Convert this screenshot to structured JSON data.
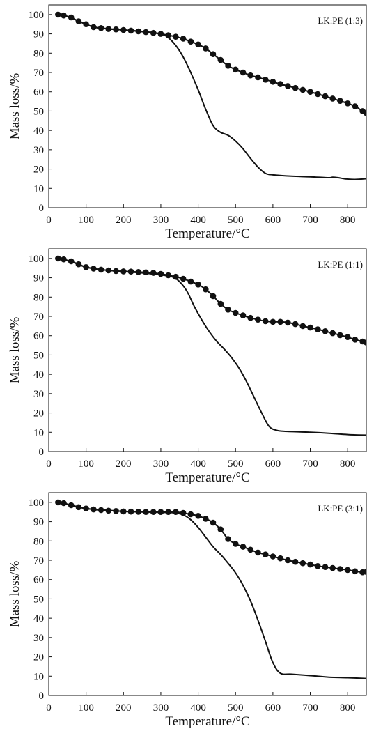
{
  "chart_data": [
    {
      "type": "line",
      "title": "",
      "annotation": "LK:PE (1:3)",
      "xlabel": "Temperature/°C",
      "ylabel": "Mass loss/%",
      "xlim": [
        0,
        850
      ],
      "ylim": [
        0,
        105
      ],
      "xticks": [
        0,
        100,
        200,
        300,
        400,
        500,
        600,
        700,
        800
      ],
      "yticks": [
        0,
        10,
        20,
        30,
        40,
        50,
        60,
        70,
        80,
        90,
        100
      ],
      "grid": false,
      "series": [
        {
          "marker": "circle",
          "x": [
            25,
            40,
            60,
            80,
            100,
            120,
            140,
            160,
            180,
            200,
            220,
            240,
            260,
            280,
            300,
            320,
            340,
            360,
            380,
            400,
            420,
            440,
            460,
            480,
            500,
            520,
            540,
            560,
            580,
            600,
            620,
            640,
            660,
            680,
            700,
            720,
            740,
            760,
            780,
            800,
            820,
            840,
            850
          ],
          "y": [
            100,
            99.5,
            98.5,
            96.5,
            95,
            93.5,
            93,
            92.5,
            92.3,
            92,
            91.7,
            91.3,
            90.9,
            90.5,
            90,
            89.3,
            88.5,
            87.5,
            86,
            84.5,
            82.5,
            79.5,
            76.5,
            73.5,
            71.5,
            70,
            68.5,
            67.5,
            66.3,
            65.2,
            64,
            63,
            62,
            61,
            60,
            58.8,
            57.7,
            56.5,
            55.3,
            54,
            52.5,
            50,
            49
          ]
        },
        {
          "marker": "none",
          "x": [
            25,
            40,
            60,
            80,
            100,
            120,
            150,
            200,
            250,
            300,
            320,
            340,
            360,
            380,
            400,
            420,
            440,
            460,
            480,
            500,
            520,
            540,
            560,
            580,
            600,
            650,
            700,
            750,
            760,
            775,
            790,
            800,
            820,
            850
          ],
          "y": [
            100,
            99.5,
            98.3,
            96.5,
            95,
            93.5,
            92.8,
            92,
            91.3,
            90,
            88,
            84,
            78,
            70,
            61,
            51,
            42.5,
            39,
            37.5,
            34.5,
            30.5,
            25.5,
            21,
            17.8,
            17,
            16.3,
            16,
            15.5,
            15.8,
            15.5,
            15,
            14.8,
            14.6,
            15
          ]
        }
      ]
    },
    {
      "type": "line",
      "title": "",
      "annotation": "LK:PE (1:1)",
      "xlabel": "Temperature/°C",
      "ylabel": "Mass loss/%",
      "xlim": [
        0,
        850
      ],
      "ylim": [
        0,
        105
      ],
      "xticks": [
        0,
        100,
        200,
        300,
        400,
        500,
        600,
        700,
        800
      ],
      "yticks": [
        0,
        10,
        20,
        30,
        40,
        50,
        60,
        70,
        80,
        90,
        100
      ],
      "grid": false,
      "series": [
        {
          "marker": "circle",
          "x": [
            25,
            40,
            60,
            80,
            100,
            120,
            140,
            160,
            180,
            200,
            220,
            240,
            260,
            280,
            300,
            320,
            340,
            360,
            380,
            400,
            420,
            440,
            460,
            480,
            500,
            520,
            540,
            560,
            580,
            600,
            620,
            640,
            660,
            680,
            700,
            720,
            740,
            760,
            780,
            800,
            820,
            840,
            850
          ],
          "y": [
            100,
            99.5,
            98.5,
            97,
            95.5,
            94.7,
            94.2,
            93.8,
            93.5,
            93.3,
            93.2,
            93,
            92.8,
            92.5,
            92,
            91.3,
            90.5,
            89.5,
            88,
            86.5,
            84,
            80.5,
            76.5,
            73.5,
            71.8,
            70.5,
            69.2,
            68.3,
            67.5,
            67.2,
            67.2,
            66.8,
            66,
            65,
            64.2,
            63.3,
            62.3,
            61.3,
            60.3,
            59.3,
            58,
            57,
            56.5
          ]
        },
        {
          "marker": "none",
          "x": [
            25,
            60,
            100,
            150,
            200,
            250,
            300,
            330,
            350,
            370,
            390,
            410,
            430,
            450,
            470,
            490,
            510,
            530,
            550,
            570,
            590,
            610,
            630,
            700,
            750,
            800,
            850
          ],
          "y": [
            100,
            98.3,
            95.5,
            94,
            93.2,
            92.5,
            91.5,
            90.5,
            88,
            83,
            75,
            68,
            62,
            57,
            53,
            48.5,
            43,
            36,
            28,
            20,
            13,
            11,
            10.5,
            10,
            9.5,
            8.8,
            8.5
          ]
        }
      ]
    },
    {
      "type": "line",
      "title": "",
      "annotation": "LK:PE (3:1)",
      "xlabel": "Temperature/°C",
      "ylabel": "Mass loss/%",
      "xlim": [
        0,
        850
      ],
      "ylim": [
        0,
        105
      ],
      "xticks": [
        0,
        100,
        200,
        300,
        400,
        500,
        600,
        700,
        800
      ],
      "yticks": [
        0,
        10,
        20,
        30,
        40,
        50,
        60,
        70,
        80,
        90,
        100
      ],
      "grid": false,
      "series": [
        {
          "marker": "circle",
          "x": [
            25,
            40,
            60,
            80,
            100,
            120,
            140,
            160,
            180,
            200,
            220,
            240,
            260,
            280,
            300,
            320,
            340,
            360,
            380,
            400,
            420,
            440,
            460,
            480,
            500,
            520,
            540,
            560,
            580,
            600,
            620,
            640,
            660,
            680,
            700,
            720,
            740,
            760,
            780,
            800,
            820,
            840,
            850
          ],
          "y": [
            100,
            99.6,
            98.5,
            97.5,
            96.8,
            96.3,
            96,
            95.7,
            95.5,
            95.3,
            95.2,
            95.1,
            95,
            95,
            95,
            95,
            95,
            94.5,
            93.8,
            93,
            91.5,
            89.5,
            86,
            81,
            78.5,
            77,
            75.5,
            74,
            73,
            72,
            71,
            70,
            69.2,
            68.5,
            67.8,
            67,
            66.5,
            66,
            65.5,
            65,
            64.3,
            63.8,
            64
          ]
        },
        {
          "marker": "none",
          "x": [
            25,
            60,
            100,
            150,
            200,
            250,
            300,
            340,
            360,
            380,
            400,
            420,
            440,
            460,
            480,
            500,
            520,
            540,
            560,
            580,
            600,
            620,
            650,
            700,
            750,
            800,
            850
          ],
          "y": [
            100,
            98.5,
            96.8,
            96,
            95.3,
            95,
            94.8,
            94.5,
            93.5,
            91,
            87,
            82,
            77,
            73,
            68.5,
            63.5,
            57,
            49,
            39,
            28,
            17,
            11.5,
            11,
            10.3,
            9.5,
            9.2,
            8.8
          ]
        }
      ]
    }
  ]
}
